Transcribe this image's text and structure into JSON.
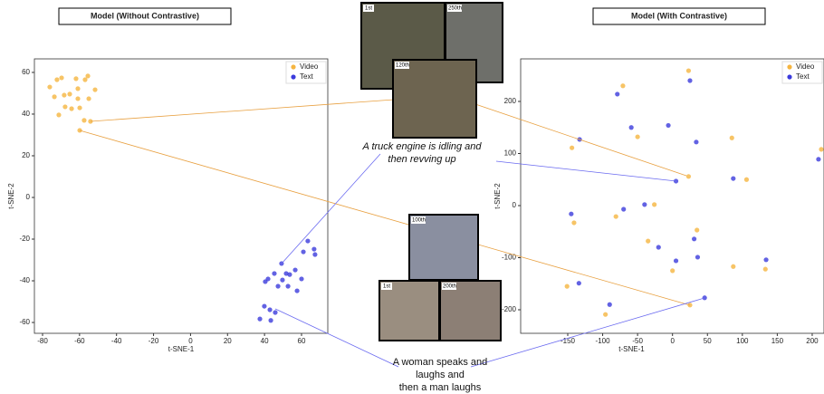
{
  "chart_data": [
    {
      "type": "scatter",
      "title": "Model (Without Contrastive)",
      "xlabel": "t-SNE-1",
      "ylabel": "t-SNE-2",
      "xlim": [
        -84.4,
        74.2
      ],
      "ylim": [
        -65.2,
        66.5
      ],
      "xticks": [
        -80,
        -60,
        -40,
        -20,
        0,
        20,
        40,
        60
      ],
      "yticks": [
        -60,
        -40,
        -20,
        0,
        20,
        40,
        60
      ],
      "legend": "upper right",
      "series": [
        {
          "name": "Video",
          "color": "#f5b540",
          "x": [
            -76.1,
            -72.2,
            -69.7,
            -61.9,
            -55.5,
            -57,
            -73.6,
            -68.3,
            -65.3,
            -67.8,
            -64.3,
            -71.2,
            -60.9,
            -59.9,
            -55,
            -51.6,
            -60.9,
            -57.5,
            -54.1,
            -59.9
          ],
          "values": [
            53,
            56.5,
            57.4,
            57,
            58.3,
            56.5,
            48.3,
            49.1,
            49.6,
            43.5,
            42.6,
            39.6,
            47.4,
            43,
            47.4,
            51.7,
            52.2,
            37,
            36.5,
            32.2
          ]
        },
        {
          "name": "Text",
          "color": "#3b3bdc",
          "x": [
            63.4,
            66.8,
            61,
            67.3,
            49.2,
            45.3,
            51.7,
            41.9,
            56.6,
            49.7,
            53.6,
            60,
            47.3,
            52.7,
            40.4,
            57.6,
            39.9,
            42.9,
            45.8,
            37.5,
            43.4
          ],
          "values": [
            -20.9,
            -24.8,
            -26.1,
            -27.4,
            -31.7,
            -36.5,
            -36.5,
            -39.1,
            -34.8,
            -39.6,
            -37,
            -39.1,
            -42.6,
            -42.6,
            -40.4,
            -44.8,
            -52.2,
            -53.9,
            -55.2,
            -58.3,
            -59
          ]
        }
      ]
    },
    {
      "type": "scatter",
      "title": "Model (With Contrastive)",
      "xlabel": "t-SNE-1",
      "ylabel": "t-SNE-2",
      "xlim": [
        -217.4,
        216.9
      ],
      "ylim": [
        -245.2,
        281.7
      ],
      "xticks": [
        -150,
        -100,
        -50,
        0,
        50,
        100,
        150,
        200
      ],
      "yticks": [
        -200,
        -100,
        0,
        100,
        200
      ],
      "legend": "upper right",
      "series": [
        {
          "name": "Video",
          "color": "#f5b540",
          "x": [
            23,
            -71,
            -144,
            -50,
            85,
            106,
            23,
            -26,
            -81,
            -141,
            35,
            -35,
            0,
            87,
            133,
            -151,
            -96,
            25,
            213
          ],
          "values": [
            259,
            230,
            111,
            132,
            130,
            50,
            56,
            2,
            -21,
            -33,
            -47,
            -68,
            -125,
            -117,
            -122,
            -155,
            -209,
            -191,
            108
          ]
        },
        {
          "name": "Text",
          "color": "#3b3bdc",
          "x": [
            25,
            -79,
            -133,
            -59,
            -6,
            34,
            87,
            5,
            209,
            -40,
            -70,
            -145,
            -20,
            31,
            36,
            5,
            134,
            -134,
            46,
            -90
          ],
          "values": [
            240,
            214,
            127,
            150,
            154,
            122,
            52,
            47,
            89,
            2,
            -7,
            -16,
            -80,
            -64,
            -99,
            -106,
            -104,
            -149,
            -177,
            -190
          ]
        }
      ]
    }
  ],
  "captions": {
    "top": [
      "A truck engine is idling and",
      "then revving up"
    ],
    "bottom": [
      "A woman speaks and",
      "laughs and",
      "then a man laughs"
    ]
  },
  "frames": {
    "top": [
      "1st",
      "250th",
      "120th"
    ],
    "bottom": [
      "100th",
      "1st",
      "200th"
    ]
  }
}
